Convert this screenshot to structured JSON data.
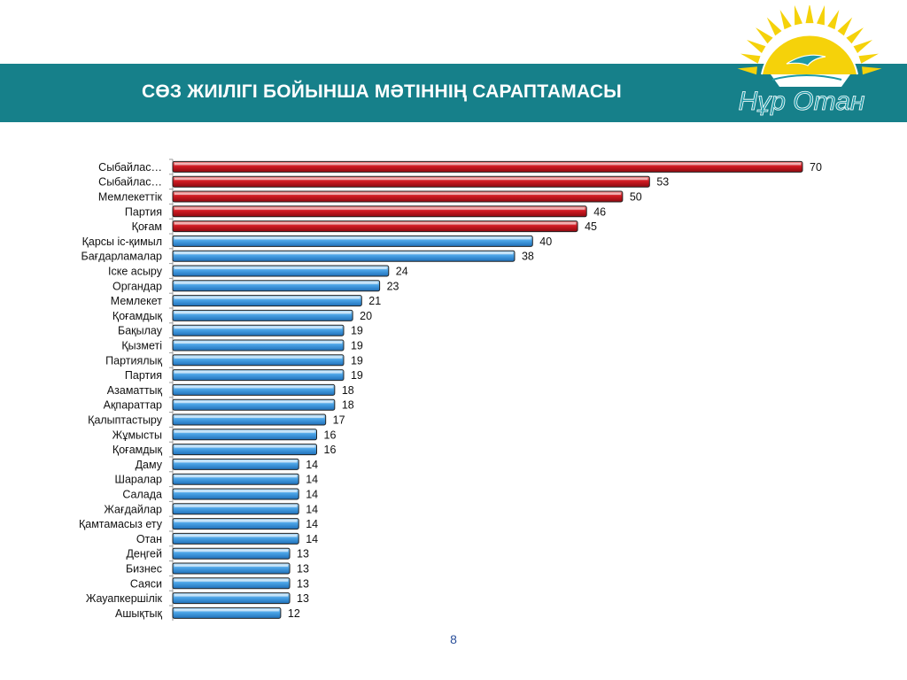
{
  "header": {
    "title": "СӨЗ ЖИІЛІГІ БОЙЫНША МӘТІННІҢ САРАПТАМАСЫ",
    "logo_text": "Нұр Отан"
  },
  "colors": {
    "banner": "#16808a",
    "highlight_bar": "#c8101c",
    "regular_bar": "#3b95dc",
    "sun": "#f5d20a",
    "logo_teal": "#1d9aa7"
  },
  "chart_data": {
    "type": "bar",
    "orientation": "horizontal",
    "categories": [
      "Сыбайлас…",
      "Сыбайлас…",
      "Мемлекеттік",
      "Партия",
      "Қоғам",
      "Қарсы іс-қимыл",
      "Бағдарламалар",
      "Іске асыру",
      "Органдар",
      "Мемлекет",
      "Қоғамдық",
      "Бақылау",
      "Қызметі",
      "Партиялық",
      "Партия",
      "Азаматтық",
      "Ақпараттар",
      "Қалыптастыру",
      "Жұмысты",
      "Қоғамдық",
      "Даму",
      "Шаралар",
      "Салада",
      "Жағдайлар",
      "Қамтамасыз ету",
      "Отан",
      "Деңгей",
      "Бизнес",
      "Саяси",
      "Жауапкершілік",
      "Ашықтық"
    ],
    "values": [
      70,
      53,
      50,
      46,
      45,
      40,
      38,
      24,
      23,
      21,
      20,
      19,
      19,
      19,
      19,
      18,
      18,
      17,
      16,
      16,
      14,
      14,
      14,
      14,
      14,
      14,
      13,
      13,
      13,
      13,
      12
    ],
    "highlighted_count": 5,
    "xlim": [
      0,
      70
    ],
    "grid": false,
    "legend": "none"
  },
  "footer": {
    "page_number": "8"
  }
}
